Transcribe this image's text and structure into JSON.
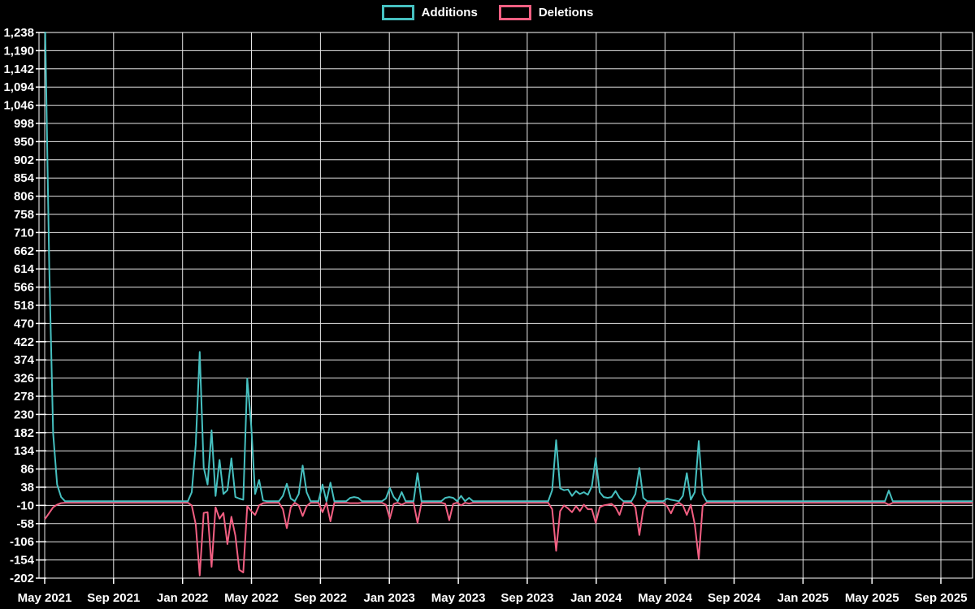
{
  "legend": {
    "additions_label": "Additions",
    "deletions_label": "Deletions"
  },
  "colors": {
    "background": "#000000",
    "grid": "#ffffff",
    "text": "#ffffff",
    "additions": "#46c0c0",
    "deletions": "#f25f82"
  },
  "chart_data": {
    "type": "line",
    "title": "",
    "xlabel": "",
    "ylabel": "",
    "legend_position": "top-center",
    "grid": true,
    "series_names": [
      "Additions",
      "Deletions"
    ],
    "x_tick_labels": [
      "May 2021",
      "Sep 2021",
      "Jan 2022",
      "May 2022",
      "Sep 2022",
      "Jan 2023",
      "May 2023",
      "Sep 2023",
      "Jan 2024",
      "May 2024",
      "Sep 2024",
      "Jan 2025",
      "May 2025",
      "Sep 2025"
    ],
    "y_tick_values": [
      1238,
      1190,
      1142,
      1094,
      1046,
      998,
      950,
      902,
      854,
      806,
      758,
      710,
      662,
      614,
      566,
      518,
      470,
      422,
      374,
      326,
      278,
      230,
      182,
      134,
      86,
      38,
      -10,
      -58,
      -106,
      -154,
      -202
    ],
    "ylim": [
      -202,
      1238
    ],
    "y_tick_step": 48,
    "x_start_week": "2021-05-02",
    "x_end_week": "2025-10-26",
    "frequency": "weekly",
    "baseline": {
      "additions": 1,
      "deletions": -3
    },
    "note": "Weekly additions/deletions; weeks not listed in data_points sit at the baseline values.",
    "data_points": [
      [
        "2021-05-02",
        1238,
        -45
      ],
      [
        "2021-05-09",
        620,
        -30
      ],
      [
        "2021-05-16",
        180,
        -15
      ],
      [
        "2021-05-23",
        45,
        -8
      ],
      [
        "2021-05-30",
        12,
        -4
      ],
      [
        "2022-01-16",
        25,
        -10
      ],
      [
        "2022-01-23",
        150,
        -60
      ],
      [
        "2022-01-30",
        395,
        -195
      ],
      [
        "2022-02-06",
        90,
        -30
      ],
      [
        "2022-02-13",
        45,
        -28
      ],
      [
        "2022-02-20",
        188,
        -172
      ],
      [
        "2022-02-27",
        15,
        -15
      ],
      [
        "2022-03-06",
        110,
        -45
      ],
      [
        "2022-03-13",
        20,
        -30
      ],
      [
        "2022-03-20",
        30,
        -112
      ],
      [
        "2022-03-27",
        114,
        -40
      ],
      [
        "2022-04-03",
        12,
        -90
      ],
      [
        "2022-04-10",
        8,
        -180
      ],
      [
        "2022-04-17",
        5,
        -187
      ],
      [
        "2022-04-24",
        325,
        -12
      ],
      [
        "2022-05-01",
        200,
        -25
      ],
      [
        "2022-05-08",
        20,
        -35
      ],
      [
        "2022-05-15",
        57,
        -10
      ],
      [
        "2022-05-22",
        3,
        -4
      ],
      [
        "2022-06-26",
        15,
        -20
      ],
      [
        "2022-07-03",
        47,
        -70
      ],
      [
        "2022-07-10",
        8,
        -15
      ],
      [
        "2022-07-24",
        20,
        -10
      ],
      [
        "2022-07-31",
        95,
        -38
      ],
      [
        "2022-08-07",
        25,
        -12
      ],
      [
        "2022-09-04",
        45,
        -28
      ],
      [
        "2022-09-18",
        50,
        -52
      ],
      [
        "2022-10-23",
        10,
        -4
      ],
      [
        "2022-10-30",
        12,
        -4
      ],
      [
        "2022-11-06",
        10,
        -4
      ],
      [
        "2022-12-25",
        8,
        -8
      ],
      [
        "2023-01-01",
        36,
        -45
      ],
      [
        "2023-01-08",
        12,
        -6
      ],
      [
        "2023-01-22",
        25,
        -8
      ],
      [
        "2023-02-19",
        75,
        -56
      ],
      [
        "2023-04-09",
        10,
        -6
      ],
      [
        "2023-04-16",
        12,
        -49
      ],
      [
        "2023-04-23",
        10,
        -6
      ],
      [
        "2023-05-07",
        15,
        -10
      ],
      [
        "2023-05-21",
        10,
        -5
      ],
      [
        "2023-10-15",
        30,
        -20
      ],
      [
        "2023-10-22",
        162,
        -130
      ],
      [
        "2023-10-29",
        35,
        -25
      ],
      [
        "2023-11-05",
        30,
        -10
      ],
      [
        "2023-11-12",
        32,
        -18
      ],
      [
        "2023-11-19",
        15,
        -28
      ],
      [
        "2023-11-26",
        28,
        -12
      ],
      [
        "2023-12-03",
        20,
        -25
      ],
      [
        "2023-12-10",
        25,
        -8
      ],
      [
        "2023-12-17",
        18,
        -20
      ],
      [
        "2023-12-24",
        40,
        -20
      ],
      [
        "2023-12-31",
        115,
        -56
      ],
      [
        "2024-01-07",
        25,
        -15
      ],
      [
        "2024-01-14",
        12,
        -10
      ],
      [
        "2024-01-21",
        10,
        -8
      ],
      [
        "2024-01-28",
        12,
        -6
      ],
      [
        "2024-02-04",
        28,
        -15
      ],
      [
        "2024-02-11",
        10,
        -35
      ],
      [
        "2024-03-10",
        20,
        -15
      ],
      [
        "2024-03-17",
        89,
        -88
      ],
      [
        "2024-03-24",
        10,
        -20
      ],
      [
        "2024-05-05",
        8,
        -12
      ],
      [
        "2024-05-12",
        5,
        -31
      ],
      [
        "2024-05-19",
        3,
        -8
      ],
      [
        "2024-06-02",
        15,
        -10
      ],
      [
        "2024-06-09",
        75,
        -35
      ],
      [
        "2024-06-16",
        5,
        -8
      ],
      [
        "2024-06-23",
        25,
        -60
      ],
      [
        "2024-06-30",
        160,
        -151
      ],
      [
        "2024-07-07",
        20,
        -12
      ],
      [
        "2025-06-01",
        29,
        -8
      ]
    ]
  }
}
